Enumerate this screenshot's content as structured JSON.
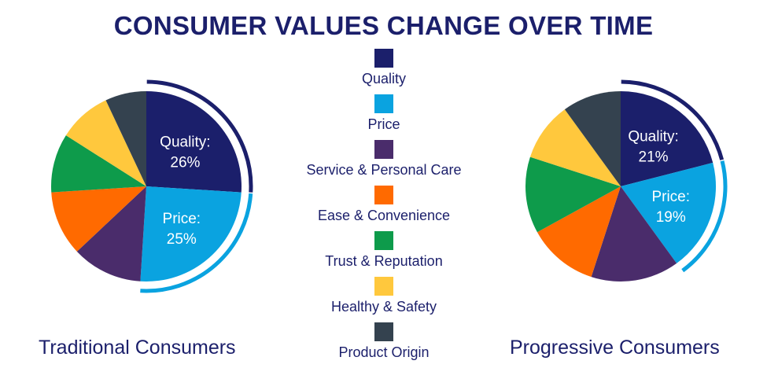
{
  "title": "CONSUMER VALUES CHANGE OVER TIME",
  "chart_data": [
    {
      "type": "pie",
      "title": "Traditional Consumers",
      "slices": [
        {
          "name": "Quality",
          "value": 26,
          "label": "Quality:",
          "pct": "26%",
          "color": "#1b1f6b"
        },
        {
          "name": "Price",
          "value": 25,
          "label": "Price:",
          "pct": "25%",
          "color": "#0aa3e0"
        },
        {
          "name": "Service & Personal Care",
          "value": 12,
          "color": "#4a2c6b"
        },
        {
          "name": "Ease & Convenience",
          "value": 11,
          "color": "#ff6a00"
        },
        {
          "name": "Trust & Reputation",
          "value": 10,
          "color": "#0e9b4b"
        },
        {
          "name": "Healthy & Safety",
          "value": 9,
          "color": "#ffc83d"
        },
        {
          "name": "Product Origin",
          "value": 7,
          "color": "#34424f"
        }
      ]
    },
    {
      "type": "pie",
      "title": "Progressive Consumers",
      "slices": [
        {
          "name": "Quality",
          "value": 21,
          "label": "Quality:",
          "pct": "21%",
          "color": "#1b1f6b"
        },
        {
          "name": "Price",
          "value": 19,
          "label": "Price:",
          "pct": "19%",
          "color": "#0aa3e0"
        },
        {
          "name": "Service & Personal Care",
          "value": 15,
          "color": "#4a2c6b"
        },
        {
          "name": "Ease & Convenience",
          "value": 12,
          "color": "#ff6a00"
        },
        {
          "name": "Trust & Reputation",
          "value": 13,
          "color": "#0e9b4b"
        },
        {
          "name": "Healthy & Safety",
          "value": 10,
          "color": "#ffc83d"
        },
        {
          "name": "Product Origin",
          "value": 10,
          "color": "#34424f"
        }
      ]
    }
  ],
  "legend": [
    {
      "label": "Quality",
      "color": "#1b1f6b"
    },
    {
      "label": "Price",
      "color": "#0aa3e0"
    },
    {
      "label": "Service & Personal Care",
      "color": "#4a2c6b"
    },
    {
      "label": "Ease & Convenience",
      "color": "#ff6a00"
    },
    {
      "label": "Trust & Reputation",
      "color": "#0e9b4b"
    },
    {
      "label": "Healthy & Safety",
      "color": "#ffc83d"
    },
    {
      "label": "Product Origin",
      "color": "#34424f"
    }
  ]
}
